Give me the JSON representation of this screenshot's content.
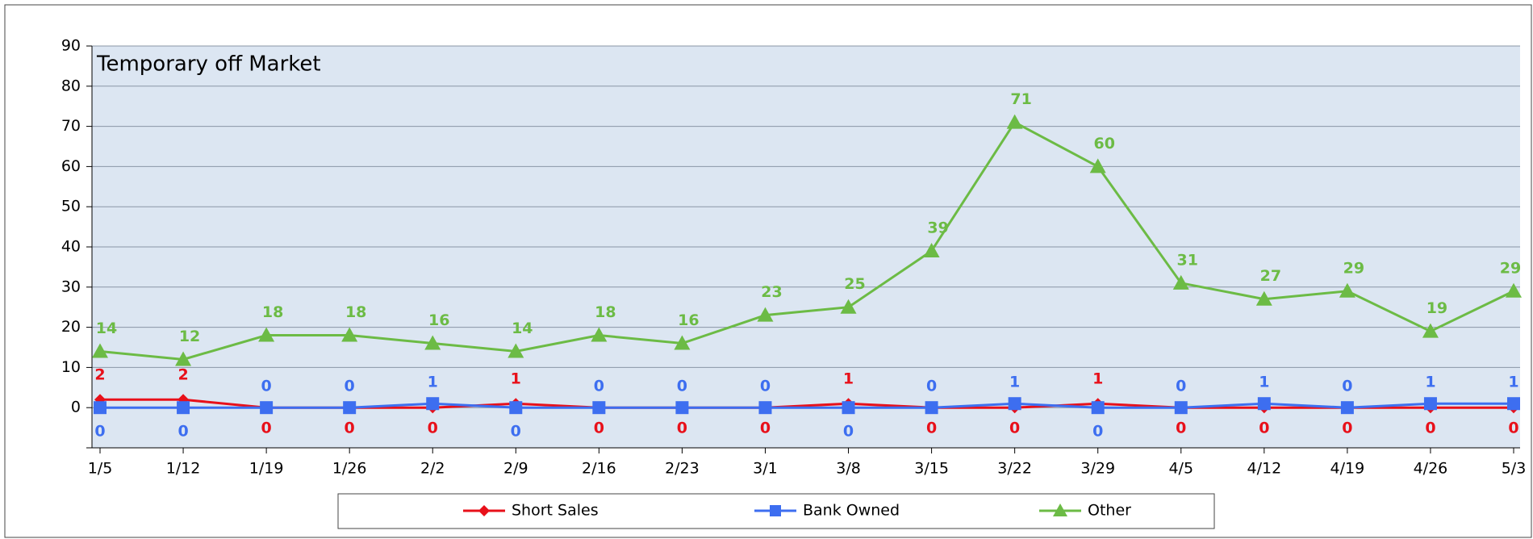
{
  "chart_data": {
    "type": "line",
    "title": "Temporary off Market",
    "categories": [
      "1/5",
      "1/12",
      "1/19",
      "1/26",
      "2/2",
      "2/9",
      "2/16",
      "2/23",
      "3/1",
      "3/8",
      "3/15",
      "3/22",
      "3/29",
      "4/5",
      "4/12",
      "4/19",
      "4/26",
      "5/3"
    ],
    "series": [
      {
        "name": "Short Sales",
        "color": "#e8101a",
        "marker": "diamond",
        "values": [
          2,
          2,
          0,
          0,
          0,
          1,
          0,
          0,
          0,
          1,
          0,
          0,
          1,
          0,
          0,
          0,
          0,
          0
        ]
      },
      {
        "name": "Bank Owned",
        "color": "#3d6ef0",
        "marker": "square",
        "values": [
          0,
          0,
          0,
          0,
          1,
          0,
          0,
          0,
          0,
          0,
          0,
          1,
          0,
          0,
          1,
          0,
          1,
          1
        ]
      },
      {
        "name": "Other",
        "color": "#6cbb45",
        "marker": "triangle",
        "values": [
          14,
          12,
          18,
          18,
          16,
          14,
          18,
          16,
          23,
          25,
          39,
          71,
          60,
          31,
          27,
          29,
          19,
          29
        ]
      }
    ],
    "ylim": [
      -10,
      90
    ],
    "yticks": [
      0,
      10,
      20,
      30,
      40,
      50,
      60,
      70,
      80,
      90
    ],
    "grid": true,
    "legend": "bottom"
  }
}
